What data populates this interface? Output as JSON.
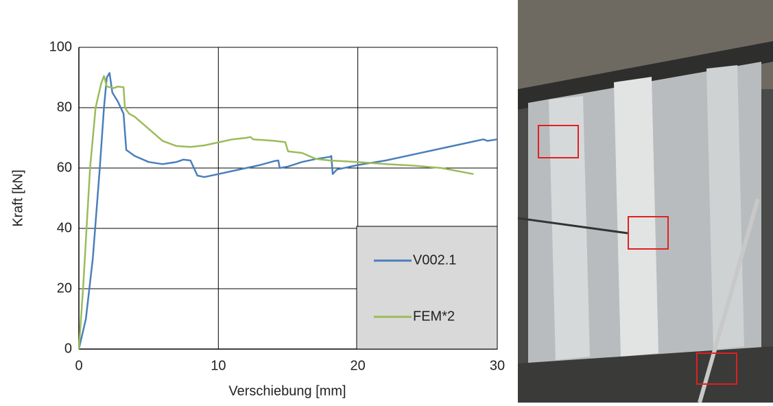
{
  "chart_data": {
    "type": "line",
    "x_label": "Verschiebung [mm]",
    "y_label": "Kraft [kN]",
    "xlim": [
      0,
      30
    ],
    "ylim": [
      0,
      100
    ],
    "xticks": [
      0,
      10,
      20,
      30
    ],
    "yticks": [
      0,
      20,
      40,
      60,
      80,
      100
    ],
    "grid": true,
    "legend_position": "lower right",
    "series": [
      {
        "name": "V002.1",
        "color": "#4a7ebb",
        "x": [
          0,
          0.5,
          1,
          1.5,
          1.8,
          2.0,
          2.2,
          2.4,
          2.8,
          3.2,
          3.4,
          4,
          5,
          6,
          7,
          7.5,
          8,
          8.5,
          9,
          10,
          11,
          12,
          13,
          14,
          14.3,
          14.4,
          15,
          16,
          17,
          18,
          18.1,
          18.2,
          18.5,
          20,
          22,
          24,
          26,
          28,
          29,
          29.3,
          30
        ],
        "values": [
          0,
          10,
          30,
          60,
          80,
          90,
          91.5,
          85,
          82,
          78,
          66,
          64,
          62,
          61.3,
          62,
          62.8,
          62.5,
          57.5,
          57,
          58,
          59,
          60,
          61,
          62.3,
          62.5,
          60,
          60.5,
          62,
          63,
          63.7,
          64,
          58,
          59.5,
          61,
          62.5,
          64.5,
          66.5,
          68.5,
          69.5,
          69,
          69.5
        ]
      },
      {
        "name": "FEM*2",
        "color": "#9bbb59",
        "x": [
          0,
          0.3,
          0.8,
          1.2,
          1.6,
          1.8,
          2.0,
          2.5,
          2.8,
          3.2,
          3.3,
          3.6,
          4,
          5,
          6,
          7,
          8,
          9,
          10,
          11,
          12,
          12.3,
          12.5,
          14,
          14.8,
          15,
          16,
          17,
          18,
          20,
          22,
          24,
          26,
          28.3
        ],
        "values": [
          0,
          20,
          60,
          80,
          88,
          90.5,
          87,
          86.5,
          87,
          86.8,
          80,
          78,
          77,
          73,
          69,
          67.3,
          67,
          67.5,
          68.5,
          69.5,
          70,
          70.3,
          69.5,
          69,
          68.6,
          65.5,
          65,
          63,
          62.5,
          62,
          61.3,
          60.8,
          60,
          58
        ]
      }
    ]
  }
}
